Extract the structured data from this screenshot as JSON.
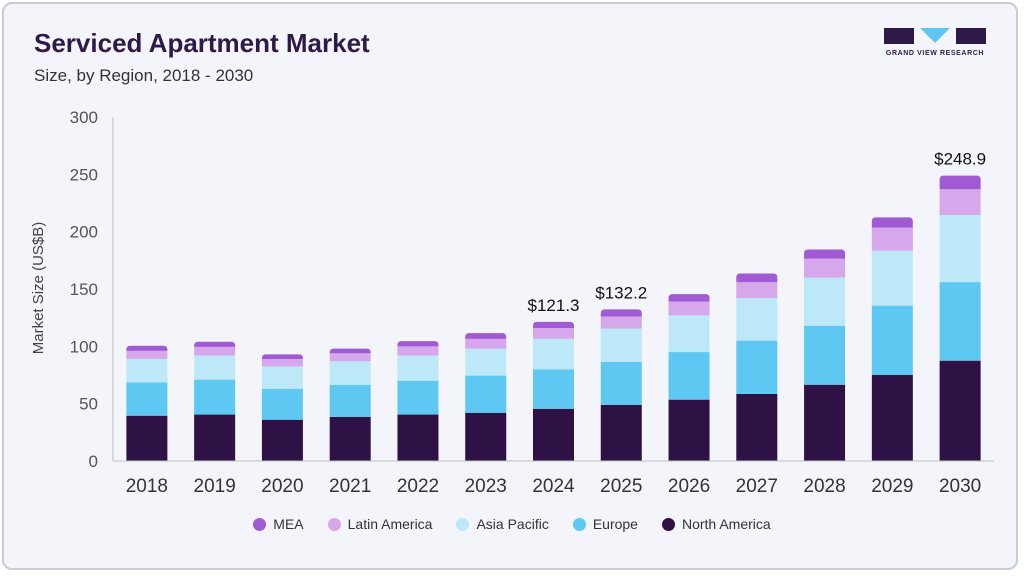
{
  "header": {
    "title": "Serviced Apartment Market",
    "subtitle": "Size, by Region, 2018 - 2030",
    "logo_text": "GRAND VIEW RESEARCH"
  },
  "colors": {
    "MEA": "#a05ad3",
    "Latin America": "#d6a7ea",
    "Asia Pacific": "#bde8f7",
    "Europe": "#5ec8f2",
    "North America": "#2e1145",
    "logo": "#2e1a47",
    "logo_accent": "#5ec8f2"
  },
  "chart_data": {
    "type": "bar",
    "stacked": true,
    "ylabel": "Market Size (US$B)",
    "xlabel": "",
    "ylim": [
      0,
      300
    ],
    "yticks": [
      0,
      50,
      100,
      150,
      200,
      250,
      300
    ],
    "grid": false,
    "legend_position": "bottom",
    "categories": [
      "2018",
      "2019",
      "2020",
      "2021",
      "2022",
      "2023",
      "2024",
      "2025",
      "2026",
      "2027",
      "2028",
      "2029",
      "2030"
    ],
    "series": [
      {
        "name": "North America",
        "values": [
          39.5,
          40.5,
          36,
          38.5,
          40.5,
          42,
          45.5,
          49,
          53.5,
          58.5,
          66.5,
          75,
          87.5
        ]
      },
      {
        "name": "Europe",
        "values": [
          29,
          30.5,
          27,
          28,
          29.5,
          32.5,
          34.5,
          37.5,
          41.5,
          46.5,
          51.5,
          60.5,
          68.5
        ]
      },
      {
        "name": "Asia Pacific",
        "values": [
          20.5,
          21,
          19.5,
          20.5,
          22,
          23.5,
          26.5,
          29,
          32,
          37,
          42,
          48,
          58.5
        ]
      },
      {
        "name": "Latin America",
        "values": [
          7,
          7.5,
          6.5,
          7,
          8,
          8.5,
          9.5,
          10.5,
          12,
          14,
          16.5,
          20,
          22.5
        ]
      },
      {
        "name": "MEA",
        "values": [
          4.5,
          4.5,
          4,
          4,
          4.5,
          5,
          5.3,
          6.2,
          6.5,
          7.5,
          8,
          9,
          11.9
        ]
      }
    ],
    "annotations": [
      {
        "category": "2024",
        "text": "$121.3",
        "value": 121.3
      },
      {
        "category": "2025",
        "text": "$132.2",
        "value": 132.2
      },
      {
        "category": "2030",
        "text": "$248.9",
        "value": 248.9
      }
    ],
    "legend_order": [
      "MEA",
      "Latin America",
      "Asia Pacific",
      "Europe",
      "North America"
    ]
  }
}
